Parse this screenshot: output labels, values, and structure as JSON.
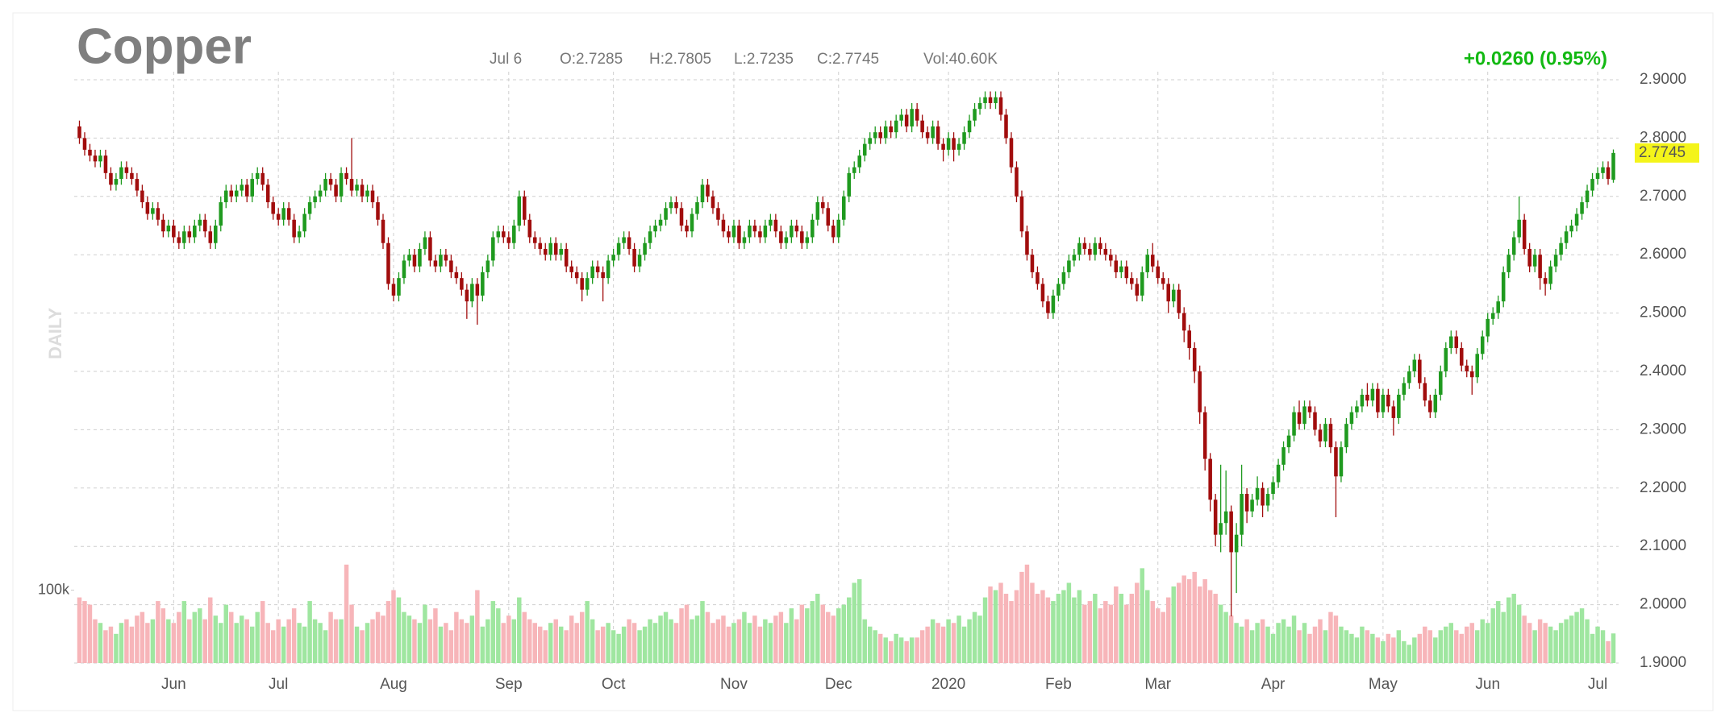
{
  "header": {
    "title": "Copper",
    "date": "Jul 6",
    "open": "O:2.7285",
    "high": "H:2.7805",
    "low": "L:2.7235",
    "close": "C:2.7745",
    "volume": "Vol:40.60K",
    "change": "+0.0260 (0.95%)",
    "last_price": "2.7745",
    "period": "DAILY"
  },
  "chart_data": {
    "type": "candlestick",
    "open": [
      2.82,
      2.8,
      2.78,
      2.77,
      2.76,
      2.77,
      2.74,
      2.72,
      2.73,
      2.75,
      2.74,
      2.73,
      2.71,
      2.69,
      2.67,
      2.68,
      2.66,
      2.64,
      2.65,
      2.63,
      2.62,
      2.64,
      2.63,
      2.65,
      2.66,
      2.64,
      2.62,
      2.65,
      2.69,
      2.71,
      2.7,
      2.71,
      2.72,
      2.7,
      2.73,
      2.74,
      2.72,
      2.69,
      2.67,
      2.66,
      2.68,
      2.66,
      2.63,
      2.64,
      2.67,
      2.69,
      2.7,
      2.71,
      2.73,
      2.72,
      2.7,
      2.74,
      2.73,
      2.71,
      2.72,
      2.7,
      2.71,
      2.69,
      2.66,
      2.62,
      2.55,
      2.53,
      2.56,
      2.59,
      2.6,
      2.58,
      2.61,
      2.63,
      2.59,
      2.58,
      2.6,
      2.59,
      2.57,
      2.56,
      2.54,
      2.52,
      2.55,
      2.53,
      2.57,
      2.59,
      2.63,
      2.64,
      2.63,
      2.62,
      2.65,
      2.7,
      2.66,
      2.63,
      2.62,
      2.61,
      2.6,
      2.62,
      2.6,
      2.61,
      2.58,
      2.57,
      2.56,
      2.54,
      2.56,
      2.58,
      2.57,
      2.56,
      2.59,
      2.6,
      2.62,
      2.63,
      2.61,
      2.58,
      2.6,
      2.62,
      2.64,
      2.65,
      2.66,
      2.68,
      2.69,
      2.68,
      2.65,
      2.64,
      2.67,
      2.69,
      2.72,
      2.7,
      2.68,
      2.66,
      2.64,
      2.63,
      2.65,
      2.62,
      2.63,
      2.65,
      2.64,
      2.63,
      2.65,
      2.66,
      2.64,
      2.62,
      2.63,
      2.65,
      2.64,
      2.62,
      2.63,
      2.66,
      2.69,
      2.68,
      2.65,
      2.63,
      2.66,
      2.7,
      2.74,
      2.75,
      2.77,
      2.79,
      2.8,
      2.81,
      2.8,
      2.82,
      2.81,
      2.83,
      2.84,
      2.82,
      2.85,
      2.83,
      2.81,
      2.8,
      2.82,
      2.79,
      2.78,
      2.8,
      2.78,
      2.79,
      2.81,
      2.83,
      2.85,
      2.86,
      2.87,
      2.86,
      2.87,
      2.84,
      2.8,
      2.75,
      2.7,
      2.64,
      2.6,
      2.57,
      2.55,
      2.52,
      2.5,
      2.53,
      2.55,
      2.57,
      2.59,
      2.6,
      2.62,
      2.61,
      2.6,
      2.62,
      2.61,
      2.6,
      2.59,
      2.57,
      2.58,
      2.56,
      2.55,
      2.53,
      2.57,
      2.6,
      2.58,
      2.56,
      2.55,
      2.52,
      2.54,
      2.5,
      2.47,
      2.44,
      2.4,
      2.33,
      2.25,
      2.18,
      2.12,
      2.14,
      2.16,
      2.09,
      2.12,
      2.19,
      2.16,
      2.18,
      2.2,
      2.17,
      2.19,
      2.21,
      2.24,
      2.27,
      2.29,
      2.33,
      2.31,
      2.34,
      2.33,
      2.3,
      2.28,
      2.31,
      2.27,
      2.22,
      2.27,
      2.31,
      2.33,
      2.34,
      2.36,
      2.35,
      2.37,
      2.33,
      2.36,
      2.34,
      2.32,
      2.36,
      2.38,
      2.4,
      2.42,
      2.38,
      2.35,
      2.33,
      2.36,
      2.4,
      2.44,
      2.46,
      2.44,
      2.41,
      2.4,
      2.39,
      2.43,
      2.46,
      2.49,
      2.5,
      2.52,
      2.57,
      2.6,
      2.63,
      2.66,
      2.61,
      2.58,
      2.6,
      2.56,
      2.55,
      2.58,
      2.6,
      2.62,
      2.64,
      2.65,
      2.67,
      2.69,
      2.71,
      2.73,
      2.74,
      2.75,
      2.7285
    ],
    "high": [
      2.83,
      2.81,
      2.79,
      2.78,
      2.78,
      2.78,
      2.75,
      2.74,
      2.76,
      2.76,
      2.75,
      2.74,
      2.72,
      2.7,
      2.69,
      2.69,
      2.67,
      2.66,
      2.66,
      2.64,
      2.65,
      2.65,
      2.66,
      2.67,
      2.67,
      2.65,
      2.66,
      2.7,
      2.72,
      2.72,
      2.72,
      2.73,
      2.73,
      2.74,
      2.75,
      2.75,
      2.73,
      2.7,
      2.68,
      2.69,
      2.69,
      2.67,
      2.65,
      2.68,
      2.7,
      2.71,
      2.72,
      2.74,
      2.74,
      2.73,
      2.75,
      2.75,
      2.8,
      2.73,
      2.73,
      2.72,
      2.72,
      2.7,
      2.67,
      2.63,
      2.56,
      2.57,
      2.6,
      2.61,
      2.61,
      2.62,
      2.64,
      2.64,
      2.6,
      2.61,
      2.61,
      2.6,
      2.58,
      2.57,
      2.55,
      2.56,
      2.56,
      2.58,
      2.6,
      2.64,
      2.65,
      2.65,
      2.64,
      2.66,
      2.71,
      2.71,
      2.67,
      2.64,
      2.63,
      2.62,
      2.63,
      2.63,
      2.62,
      2.62,
      2.59,
      2.58,
      2.57,
      2.57,
      2.59,
      2.59,
      2.58,
      2.6,
      2.61,
      2.63,
      2.64,
      2.64,
      2.62,
      2.61,
      2.63,
      2.65,
      2.66,
      2.67,
      2.69,
      2.7,
      2.7,
      2.69,
      2.66,
      2.68,
      2.7,
      2.73,
      2.73,
      2.71,
      2.69,
      2.67,
      2.65,
      2.66,
      2.66,
      2.64,
      2.66,
      2.66,
      2.65,
      2.66,
      2.67,
      2.67,
      2.65,
      2.64,
      2.66,
      2.66,
      2.65,
      2.64,
      2.67,
      2.7,
      2.7,
      2.69,
      2.66,
      2.67,
      2.71,
      2.75,
      2.76,
      2.78,
      2.8,
      2.81,
      2.82,
      2.82,
      2.83,
      2.83,
      2.84,
      2.85,
      2.85,
      2.86,
      2.86,
      2.84,
      2.82,
      2.83,
      2.83,
      2.8,
      2.81,
      2.81,
      2.8,
      2.82,
      2.84,
      2.86,
      2.87,
      2.88,
      2.88,
      2.88,
      2.88,
      2.85,
      2.81,
      2.76,
      2.71,
      2.65,
      2.61,
      2.58,
      2.56,
      2.53,
      2.54,
      2.56,
      2.58,
      2.6,
      2.61,
      2.63,
      2.63,
      2.62,
      2.63,
      2.63,
      2.62,
      2.61,
      2.6,
      2.59,
      2.59,
      2.57,
      2.56,
      2.58,
      2.61,
      2.62,
      2.59,
      2.57,
      2.56,
      2.55,
      2.55,
      2.51,
      2.48,
      2.45,
      2.41,
      2.34,
      2.26,
      2.19,
      2.24,
      2.23,
      2.17,
      2.14,
      2.24,
      2.2,
      2.19,
      2.22,
      2.21,
      2.2,
      2.22,
      2.25,
      2.28,
      2.3,
      2.34,
      2.35,
      2.35,
      2.35,
      2.34,
      2.31,
      2.32,
      2.32,
      2.28,
      2.28,
      2.32,
      2.34,
      2.35,
      2.37,
      2.38,
      2.38,
      2.38,
      2.37,
      2.37,
      2.35,
      2.37,
      2.39,
      2.41,
      2.43,
      2.43,
      2.39,
      2.36,
      2.37,
      2.41,
      2.45,
      2.47,
      2.47,
      2.45,
      2.42,
      2.41,
      2.44,
      2.47,
      2.5,
      2.51,
      2.53,
      2.58,
      2.61,
      2.64,
      2.7,
      2.67,
      2.62,
      2.61,
      2.61,
      2.57,
      2.59,
      2.61,
      2.63,
      2.65,
      2.66,
      2.68,
      2.7,
      2.72,
      2.74,
      2.75,
      2.76,
      2.76,
      2.7805
    ],
    "low": [
      2.79,
      2.77,
      2.76,
      2.75,
      2.75,
      2.73,
      2.71,
      2.71,
      2.72,
      2.73,
      2.72,
      2.7,
      2.68,
      2.66,
      2.66,
      2.65,
      2.63,
      2.63,
      2.62,
      2.61,
      2.61,
      2.62,
      2.62,
      2.64,
      2.63,
      2.61,
      2.61,
      2.64,
      2.68,
      2.69,
      2.69,
      2.7,
      2.69,
      2.69,
      2.72,
      2.71,
      2.68,
      2.66,
      2.65,
      2.65,
      2.65,
      2.62,
      2.62,
      2.63,
      2.66,
      2.68,
      2.69,
      2.7,
      2.71,
      2.69,
      2.69,
      2.72,
      2.7,
      2.7,
      2.69,
      2.69,
      2.68,
      2.65,
      2.61,
      2.54,
      2.52,
      2.52,
      2.55,
      2.58,
      2.57,
      2.57,
      2.6,
      2.58,
      2.57,
      2.57,
      2.58,
      2.56,
      2.55,
      2.53,
      2.49,
      2.51,
      2.48,
      2.52,
      2.56,
      2.58,
      2.62,
      2.62,
      2.61,
      2.61,
      2.64,
      2.65,
      2.62,
      2.61,
      2.6,
      2.59,
      2.59,
      2.59,
      2.59,
      2.57,
      2.56,
      2.55,
      2.52,
      2.53,
      2.55,
      2.56,
      2.52,
      2.55,
      2.58,
      2.59,
      2.61,
      2.6,
      2.57,
      2.57,
      2.59,
      2.61,
      2.63,
      2.64,
      2.65,
      2.67,
      2.67,
      2.64,
      2.63,
      2.63,
      2.66,
      2.68,
      2.69,
      2.67,
      2.65,
      2.63,
      2.62,
      2.62,
      2.61,
      2.61,
      2.62,
      2.63,
      2.62,
      2.62,
      2.64,
      2.63,
      2.61,
      2.61,
      2.62,
      2.63,
      2.61,
      2.61,
      2.62,
      2.65,
      2.67,
      2.64,
      2.62,
      2.62,
      2.65,
      2.69,
      2.73,
      2.74,
      2.76,
      2.78,
      2.79,
      2.79,
      2.79,
      2.8,
      2.8,
      2.82,
      2.81,
      2.81,
      2.82,
      2.8,
      2.79,
      2.79,
      2.78,
      2.76,
      2.77,
      2.76,
      2.77,
      2.78,
      2.8,
      2.82,
      2.84,
      2.85,
      2.85,
      2.85,
      2.83,
      2.79,
      2.74,
      2.69,
      2.63,
      2.59,
      2.56,
      2.54,
      2.51,
      2.49,
      2.49,
      2.52,
      2.54,
      2.56,
      2.58,
      2.59,
      2.6,
      2.59,
      2.59,
      2.6,
      2.59,
      2.58,
      2.56,
      2.56,
      2.55,
      2.54,
      2.52,
      2.52,
      2.56,
      2.57,
      2.55,
      2.54,
      2.5,
      2.51,
      2.49,
      2.45,
      2.42,
      2.38,
      2.31,
      2.23,
      2.16,
      2.1,
      2.09,
      2.12,
      1.98,
      2.02,
      2.1,
      2.14,
      2.15,
      2.17,
      2.15,
      2.16,
      2.18,
      2.2,
      2.23,
      2.26,
      2.28,
      2.3,
      2.3,
      2.32,
      2.29,
      2.27,
      2.27,
      2.26,
      2.15,
      2.21,
      2.26,
      2.3,
      2.32,
      2.33,
      2.34,
      2.34,
      2.32,
      2.32,
      2.33,
      2.29,
      2.31,
      2.35,
      2.37,
      2.39,
      2.37,
      2.34,
      2.32,
      2.32,
      2.35,
      2.39,
      2.43,
      2.43,
      2.4,
      2.39,
      2.36,
      2.38,
      2.42,
      2.45,
      2.48,
      2.49,
      2.51,
      2.56,
      2.59,
      2.62,
      2.6,
      2.57,
      2.57,
      2.54,
      2.53,
      2.54,
      2.57,
      2.59,
      2.61,
      2.63,
      2.64,
      2.66,
      2.68,
      2.7,
      2.72,
      2.73,
      2.72,
      2.7235
    ],
    "close": [
      2.8,
      2.78,
      2.77,
      2.76,
      2.77,
      2.74,
      2.72,
      2.73,
      2.75,
      2.74,
      2.73,
      2.71,
      2.69,
      2.67,
      2.68,
      2.66,
      2.64,
      2.65,
      2.63,
      2.62,
      2.64,
      2.63,
      2.65,
      2.66,
      2.64,
      2.62,
      2.65,
      2.69,
      2.71,
      2.7,
      2.71,
      2.72,
      2.7,
      2.73,
      2.74,
      2.72,
      2.69,
      2.67,
      2.66,
      2.68,
      2.66,
      2.63,
      2.64,
      2.67,
      2.69,
      2.7,
      2.71,
      2.73,
      2.72,
      2.7,
      2.74,
      2.73,
      2.71,
      2.72,
      2.7,
      2.71,
      2.69,
      2.66,
      2.62,
      2.55,
      2.53,
      2.56,
      2.59,
      2.6,
      2.58,
      2.61,
      2.63,
      2.59,
      2.58,
      2.6,
      2.59,
      2.57,
      2.56,
      2.54,
      2.52,
      2.55,
      2.53,
      2.57,
      2.59,
      2.63,
      2.64,
      2.63,
      2.62,
      2.65,
      2.7,
      2.66,
      2.63,
      2.62,
      2.61,
      2.6,
      2.62,
      2.6,
      2.61,
      2.58,
      2.57,
      2.56,
      2.54,
      2.56,
      2.58,
      2.57,
      2.56,
      2.59,
      2.6,
      2.62,
      2.63,
      2.61,
      2.58,
      2.6,
      2.62,
      2.64,
      2.65,
      2.66,
      2.68,
      2.69,
      2.68,
      2.65,
      2.64,
      2.67,
      2.69,
      2.72,
      2.7,
      2.68,
      2.66,
      2.64,
      2.63,
      2.65,
      2.62,
      2.63,
      2.65,
      2.64,
      2.63,
      2.65,
      2.66,
      2.64,
      2.62,
      2.63,
      2.65,
      2.64,
      2.62,
      2.63,
      2.66,
      2.69,
      2.68,
      2.65,
      2.63,
      2.66,
      2.7,
      2.74,
      2.75,
      2.77,
      2.79,
      2.8,
      2.81,
      2.8,
      2.82,
      2.81,
      2.83,
      2.84,
      2.82,
      2.85,
      2.83,
      2.81,
      2.8,
      2.82,
      2.79,
      2.78,
      2.8,
      2.78,
      2.79,
      2.81,
      2.83,
      2.85,
      2.86,
      2.87,
      2.86,
      2.87,
      2.84,
      2.8,
      2.75,
      2.7,
      2.64,
      2.6,
      2.57,
      2.55,
      2.52,
      2.5,
      2.53,
      2.55,
      2.57,
      2.59,
      2.6,
      2.62,
      2.61,
      2.6,
      2.62,
      2.61,
      2.6,
      2.59,
      2.57,
      2.58,
      2.56,
      2.55,
      2.53,
      2.57,
      2.6,
      2.58,
      2.56,
      2.55,
      2.52,
      2.54,
      2.5,
      2.47,
      2.44,
      2.4,
      2.33,
      2.25,
      2.18,
      2.12,
      2.14,
      2.16,
      2.09,
      2.12,
      2.19,
      2.16,
      2.18,
      2.2,
      2.17,
      2.19,
      2.21,
      2.24,
      2.27,
      2.29,
      2.33,
      2.31,
      2.34,
      2.33,
      2.3,
      2.28,
      2.31,
      2.27,
      2.22,
      2.27,
      2.31,
      2.33,
      2.34,
      2.36,
      2.35,
      2.37,
      2.33,
      2.36,
      2.34,
      2.32,
      2.36,
      2.38,
      2.4,
      2.42,
      2.38,
      2.35,
      2.33,
      2.36,
      2.4,
      2.44,
      2.46,
      2.44,
      2.41,
      2.4,
      2.39,
      2.43,
      2.46,
      2.49,
      2.5,
      2.52,
      2.57,
      2.6,
      2.63,
      2.66,
      2.61,
      2.58,
      2.6,
      2.56,
      2.55,
      2.58,
      2.6,
      2.62,
      2.64,
      2.65,
      2.67,
      2.69,
      2.71,
      2.73,
      2.74,
      2.75,
      2.73,
      2.7745
    ],
    "volume": [
      90,
      85,
      80,
      60,
      55,
      45,
      50,
      40,
      55,
      60,
      50,
      65,
      70,
      55,
      60,
      85,
      75,
      60,
      55,
      70,
      85,
      60,
      70,
      75,
      60,
      90,
      65,
      55,
      80,
      70,
      55,
      65,
      60,
      50,
      70,
      85,
      55,
      45,
      60,
      50,
      60,
      75,
      55,
      50,
      85,
      60,
      55,
      45,
      70,
      60,
      60,
      135,
      80,
      50,
      45,
      55,
      60,
      70,
      65,
      85,
      100,
      90,
      70,
      65,
      60,
      55,
      80,
      60,
      75,
      50,
      55,
      45,
      70,
      60,
      55,
      65,
      100,
      50,
      60,
      85,
      75,
      55,
      65,
      60,
      90,
      70,
      60,
      55,
      50,
      45,
      55,
      60,
      50,
      45,
      65,
      55,
      70,
      85,
      60,
      45,
      50,
      55,
      45,
      40,
      50,
      60,
      55,
      45,
      50,
      60,
      55,
      65,
      70,
      60,
      55,
      75,
      80,
      60,
      65,
      85,
      70,
      55,
      60,
      65,
      50,
      55,
      60,
      70,
      55,
      65,
      50,
      60,
      55,
      65,
      70,
      55,
      75,
      60,
      80,
      75,
      85,
      95,
      80,
      70,
      65,
      75,
      80,
      90,
      110,
      115,
      60,
      50,
      45,
      40,
      35,
      30,
      40,
      35,
      30,
      35,
      35,
      45,
      50,
      60,
      55,
      50,
      60,
      55,
      65,
      50,
      60,
      70,
      65,
      90,
      105,
      100,
      110,
      95,
      85,
      100,
      125,
      135,
      110,
      95,
      100,
      90,
      85,
      95,
      100,
      110,
      90,
      100,
      80,
      85,
      95,
      75,
      85,
      80,
      105,
      95,
      80,
      95,
      110,
      130,
      100,
      85,
      75,
      70,
      90,
      105,
      110,
      120,
      115,
      125,
      105,
      115,
      100,
      95,
      80,
      70,
      65,
      55,
      50,
      60,
      45,
      55,
      60,
      50,
      40,
      55,
      60,
      50,
      65,
      45,
      55,
      40,
      50,
      60,
      45,
      70,
      65,
      50,
      45,
      40,
      35,
      50,
      45,
      40,
      35,
      30,
      40,
      35,
      45,
      30,
      25,
      35,
      40,
      50,
      45,
      35,
      45,
      50,
      55,
      45,
      40,
      50,
      55,
      45,
      60,
      55,
      75,
      85,
      70,
      90,
      95,
      80,
      65,
      55,
      45,
      60,
      55,
      50,
      45,
      55,
      60,
      65,
      70,
      75,
      60,
      40,
      50,
      45,
      30,
      40.6
    ],
    "up_color": "#1f9a1f",
    "down_color": "#a10d0d",
    "volume_up_color": "#9fe6a0",
    "volume_down_color": "#f7b5b9",
    "xlim": [
      -1,
      294
    ],
    "xticks": [
      {
        "value": 18,
        "label": "Jun"
      },
      {
        "value": 38,
        "label": "Jul"
      },
      {
        "value": 60,
        "label": "Aug"
      },
      {
        "value": 82,
        "label": "Sep"
      },
      {
        "value": 102,
        "label": "Oct"
      },
      {
        "value": 125,
        "label": "Nov"
      },
      {
        "value": 145,
        "label": "Dec"
      },
      {
        "value": 166,
        "label": "2020"
      },
      {
        "value": 187,
        "label": "Feb"
      },
      {
        "value": 206,
        "label": "Mar"
      },
      {
        "value": 228,
        "label": "Apr"
      },
      {
        "value": 249,
        "label": "May"
      },
      {
        "value": 269,
        "label": "Jun"
      },
      {
        "value": 290,
        "label": "Jul"
      }
    ],
    "ylim": [
      1.9,
      2.9
    ],
    "yticks": [
      {
        "value": 1.9,
        "label": "1.9000"
      },
      {
        "value": 2.0,
        "label": "2.0000"
      },
      {
        "value": 2.1,
        "label": "2.1000"
      },
      {
        "value": 2.2,
        "label": "2.2000"
      },
      {
        "value": 2.3,
        "label": "2.3000"
      },
      {
        "value": 2.4,
        "label": "2.4000"
      },
      {
        "value": 2.5,
        "label": "2.5000"
      },
      {
        "value": 2.6,
        "label": "2.6000"
      },
      {
        "value": 2.7,
        "label": "2.7000"
      },
      {
        "value": 2.8,
        "label": "2.8000"
      },
      {
        "value": 2.9,
        "label": "2.9000"
      }
    ],
    "volume_ylim": [
      0,
      800
    ],
    "volume_yticks": [
      {
        "value": 100,
        "label": "100k"
      }
    ],
    "grid": true
  }
}
